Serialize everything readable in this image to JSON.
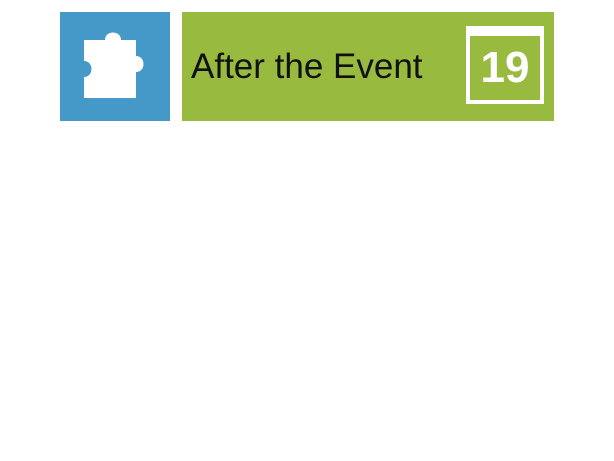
{
  "header": {
    "title": "After the Event",
    "calendar_day": "19",
    "puzzle_icon": "puzzle-piece-icon",
    "calendar_icon": "calendar-icon"
  },
  "colors": {
    "puzzle_tile": "#4499c9",
    "banner": "#98ba3f",
    "icon_fg": "#ffffff",
    "title_text": "#111111"
  }
}
